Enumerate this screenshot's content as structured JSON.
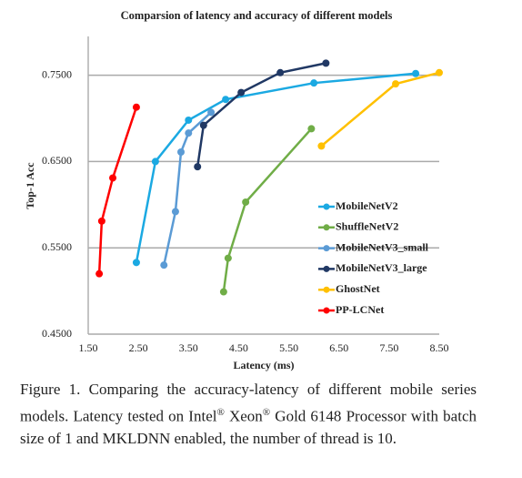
{
  "chart_data": {
    "type": "line",
    "title": "Comparsion of latency and accuracy of different models",
    "x_label": "Latency (ms)",
    "y_label": "Top-1 Acc",
    "xlim": [
      1.5,
      8.5
    ],
    "ylim": [
      0.45,
      0.795
    ],
    "xticks": [
      {
        "value": 1.5,
        "label": "1.50"
      },
      {
        "value": 2.5,
        "label": "2.50"
      },
      {
        "value": 3.5,
        "label": "3.50"
      },
      {
        "value": 4.5,
        "label": "4.50"
      },
      {
        "value": 5.5,
        "label": "5.50"
      },
      {
        "value": 6.5,
        "label": "6.50"
      },
      {
        "value": 7.5,
        "label": "7.50"
      },
      {
        "value": 8.5,
        "label": "8.50"
      }
    ],
    "yticks": [
      {
        "value": 0.45,
        "label": "0.4500"
      },
      {
        "value": 0.55,
        "label": "0.5500"
      },
      {
        "value": 0.65,
        "label": "0.6500"
      },
      {
        "value": 0.75,
        "label": "0.7500"
      }
    ],
    "grid": true,
    "legend": "right",
    "series": [
      {
        "name": "MobileNetV2",
        "color": "#1ba9e2",
        "x": [
          2.46,
          2.84,
          3.5,
          4.24,
          6.0,
          8.03
        ],
        "values": [
          0.533,
          0.65,
          0.698,
          0.722,
          0.741,
          0.752
        ]
      },
      {
        "name": "ShuffleNetV2",
        "color": "#70ad47",
        "x": [
          4.2,
          4.29,
          4.64,
          5.95
        ],
        "values": [
          0.499,
          0.538,
          0.603,
          0.688
        ]
      },
      {
        "name": "MobileNetV3_small",
        "color": "#5b9bd5",
        "x": [
          3.01,
          3.24,
          3.35,
          3.5,
          3.95
        ],
        "values": [
          0.53,
          0.592,
          0.661,
          0.683,
          0.707
        ]
      },
      {
        "name": "MobileNetV3_large",
        "color": "#203864",
        "x": [
          3.68,
          3.8,
          4.55,
          5.33,
          6.24
        ],
        "values": [
          0.644,
          0.692,
          0.73,
          0.753,
          0.764
        ]
      },
      {
        "name": "GhostNet",
        "color": "#ffc000",
        "x": [
          6.15,
          7.63,
          8.5
        ],
        "values": [
          0.668,
          0.74,
          0.753
        ]
      },
      {
        "name": "PP-LCNet",
        "color": "#ff0000",
        "x": [
          1.72,
          1.77,
          1.99,
          2.46
        ],
        "values": [
          0.52,
          0.581,
          0.631,
          0.713
        ]
      }
    ]
  },
  "caption": [
    "Figure 1. Comparing the accuracy-latency of different mobile series models. Latency tested on Intel",
    "®",
    " Xeon",
    "®",
    " Gold 6148 Processor with batch size of 1 and MKLDNN enabled, the number of thread is 10."
  ]
}
